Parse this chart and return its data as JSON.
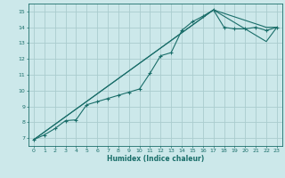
{
  "background_color": "#cce8ea",
  "grid_color": "#aaccce",
  "line_color": "#1a6e6a",
  "xlabel": "Humidex (Indice chaleur)",
  "xlim": [
    -0.5,
    23.5
  ],
  "ylim": [
    6.5,
    15.5
  ],
  "yticks": [
    7,
    8,
    9,
    10,
    11,
    12,
    13,
    14,
    15
  ],
  "xticks": [
    0,
    1,
    2,
    3,
    4,
    5,
    6,
    7,
    8,
    9,
    10,
    11,
    12,
    13,
    14,
    15,
    16,
    17,
    18,
    19,
    20,
    21,
    22,
    23
  ],
  "curve1_x": [
    0,
    1,
    2,
    3,
    4,
    5,
    6,
    7,
    8,
    9,
    10,
    11,
    12,
    13,
    14,
    15,
    16,
    17,
    18,
    19,
    20,
    21,
    22,
    23
  ],
  "curve1_y": [
    6.9,
    7.2,
    7.6,
    8.1,
    8.15,
    9.1,
    9.3,
    9.5,
    9.7,
    9.9,
    10.1,
    11.1,
    12.2,
    12.4,
    13.8,
    14.35,
    14.7,
    15.1,
    14.0,
    13.9,
    13.9,
    14.0,
    13.8,
    14.0
  ],
  "curve2_x": [
    0,
    17,
    22,
    23
  ],
  "curve2_y": [
    6.9,
    15.1,
    14.0,
    14.0
  ],
  "curve3_x": [
    0,
    17,
    22,
    23
  ],
  "curve3_y": [
    6.9,
    15.1,
    13.1,
    14.0
  ]
}
